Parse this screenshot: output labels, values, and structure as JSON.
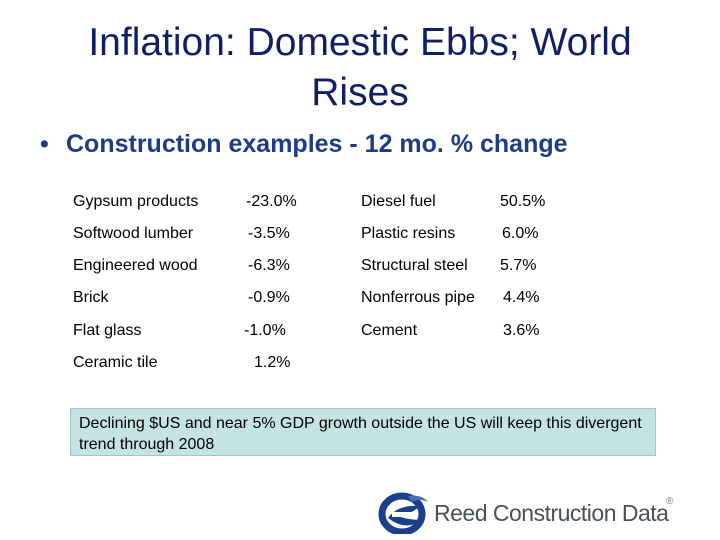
{
  "title": {
    "line1": "Inflation: Domestic Ebbs; World",
    "line2": "Rises"
  },
  "bullet": "Construction examples - 12 mo. % change",
  "left_items": [
    {
      "name": "Gypsum products",
      "value": "-23.0%"
    },
    {
      "name": "Softwood lumber",
      "value": "-3.5%"
    },
    {
      "name": "Engineered wood",
      "value": "-6.3%"
    },
    {
      "name": "Brick",
      "value": "-0.9%"
    },
    {
      "name": "Flat glass",
      "value": "-1.0%"
    },
    {
      "name": "Ceramic tile",
      "value": "1.2%"
    }
  ],
  "right_items": [
    {
      "name": "Diesel fuel",
      "value": "50.5%"
    },
    {
      "name": "Plastic resins",
      "value": "6.0%"
    },
    {
      "name": "Structural steel",
      "value": "5.7%"
    },
    {
      "name": "Nonferrous pipe",
      "value": "4.4%"
    },
    {
      "name": "Cement",
      "value": "3.6%"
    }
  ],
  "callout": "Declining $US and near 5% GDP growth outside the US will keep this divergent trend through 2008",
  "logo": {
    "text": "Reed Construction Data",
    "reg": "®"
  },
  "colors": {
    "title": "#0f1f66",
    "bullet": "#1f3a86",
    "callout_bg": "#c5e3e3",
    "logo_blue": "#1c3f8c"
  }
}
